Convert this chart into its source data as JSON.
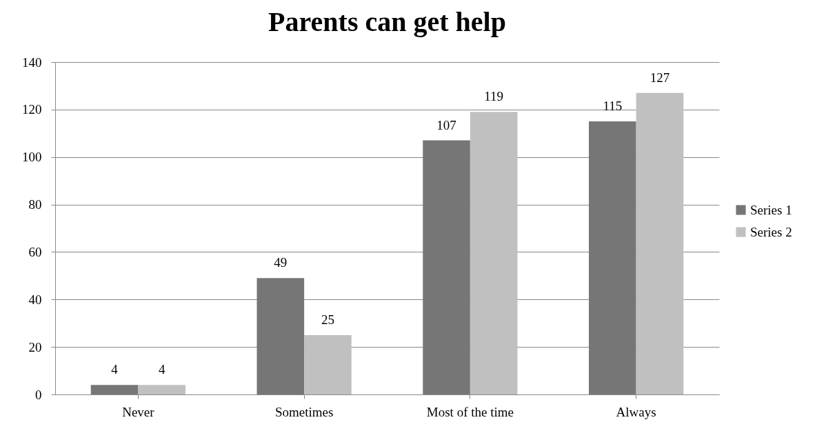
{
  "chart_data": {
    "type": "bar",
    "title": "Parents can get help",
    "categories": [
      "Never",
      "Sometimes",
      "Most of the time",
      "Always"
    ],
    "series": [
      {
        "name": "Series 1",
        "color": "#767676",
        "values": [
          4,
          49,
          107,
          115
        ]
      },
      {
        "name": "Series 2",
        "color": "#c0c0c0",
        "values": [
          4,
          25,
          119,
          127
        ]
      }
    ],
    "ylim": [
      0,
      140
    ],
    "yticks": [
      0,
      20,
      40,
      60,
      80,
      100,
      120,
      140
    ],
    "grid": "y",
    "legend": "right",
    "data_labels": true
  }
}
